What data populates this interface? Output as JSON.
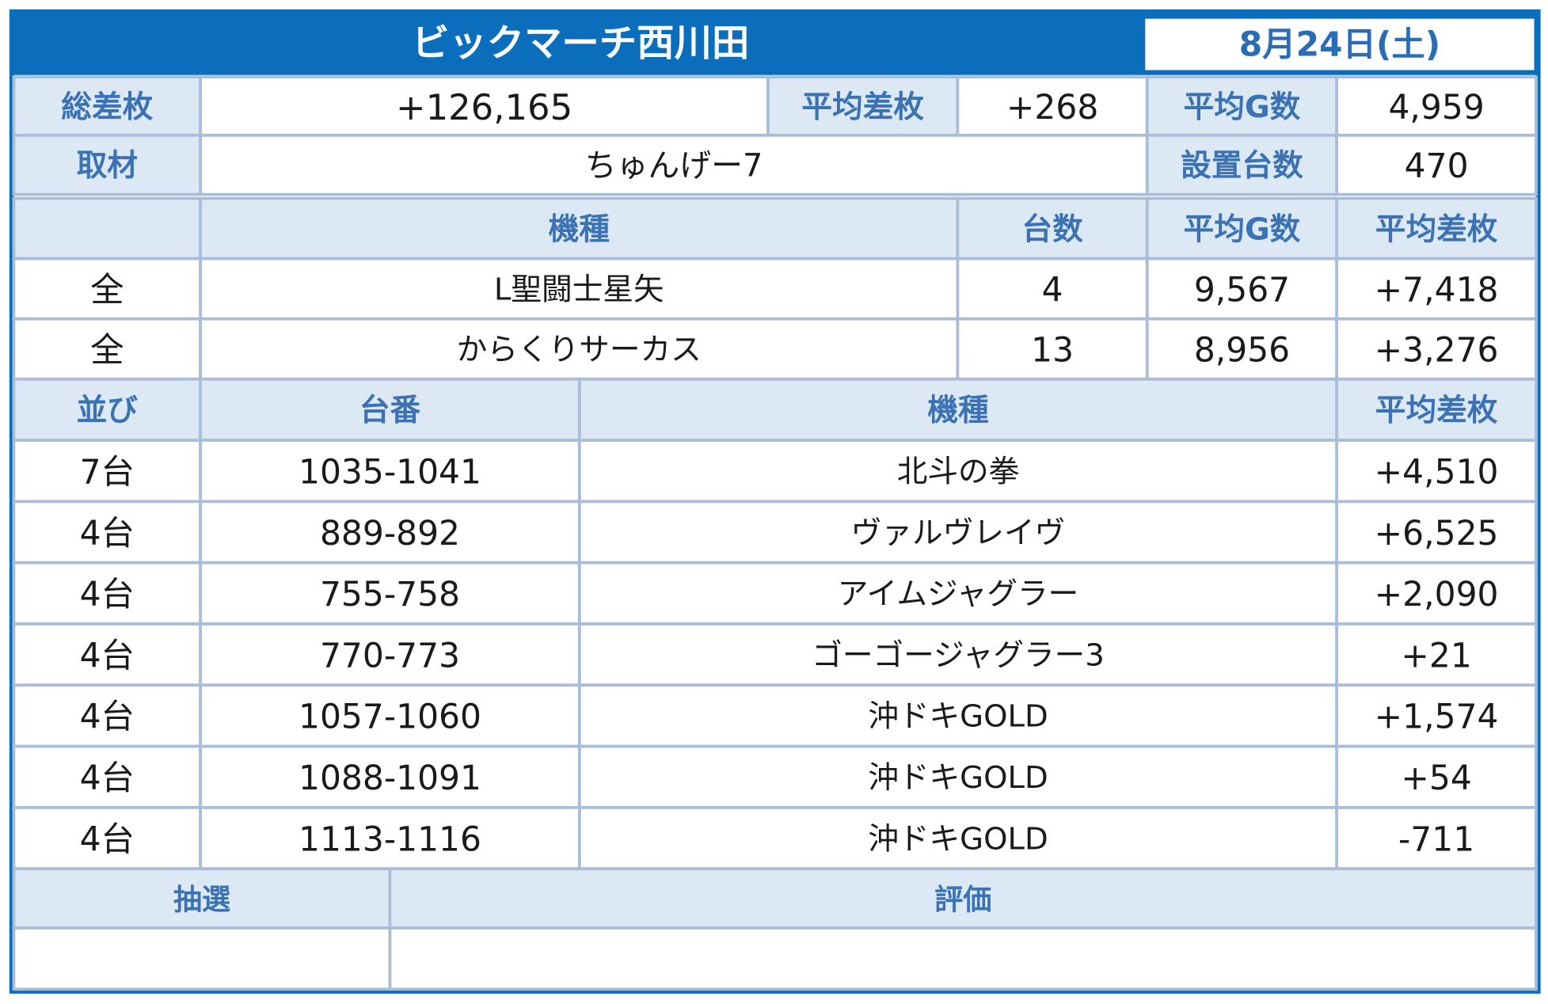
{
  "header": {
    "title": "ビックマーチ西川田",
    "date": "8月24日(土)"
  },
  "summary": {
    "rows": [
      [
        "総差枚",
        "+126,165",
        "平均差枚",
        "+268",
        "平均G数",
        "4,959"
      ],
      [
        "取材",
        "ちゅんげー7",
        "設置台数",
        "470"
      ]
    ]
  },
  "models": {
    "columns": [
      "機種",
      "台数",
      "平均G数",
      "平均差枚"
    ],
    "rows": [
      [
        "全",
        "L聖闘士星矢",
        "4",
        "9,567",
        "+7,418"
      ],
      [
        "全",
        "からくりサーカス",
        "13",
        "8,956",
        "+3,276"
      ]
    ]
  },
  "lineup": {
    "columns": [
      "並び",
      "台番",
      "機種",
      "平均差枚"
    ],
    "rows": [
      [
        "7台",
        "1035-1041",
        "北斗の拳",
        "+4,510"
      ],
      [
        "4台",
        "889-892",
        "ヴァルヴレイヴ",
        "+6,525"
      ],
      [
        "4台",
        "755-758",
        "アイムジャグラー",
        "+2,090"
      ],
      [
        "4台",
        "770-773",
        "ゴーゴージャグラー3",
        "+21"
      ],
      [
        "4台",
        "1057-1060",
        "沖ドキGOLD",
        "+1,574"
      ],
      [
        "4台",
        "1088-1091",
        "沖ドキGOLD",
        "+54"
      ],
      [
        "4台",
        "1113-1116",
        "沖ドキGOLD",
        "-711"
      ]
    ]
  },
  "footer": {
    "columns": [
      "抽選",
      "評価"
    ]
  }
}
